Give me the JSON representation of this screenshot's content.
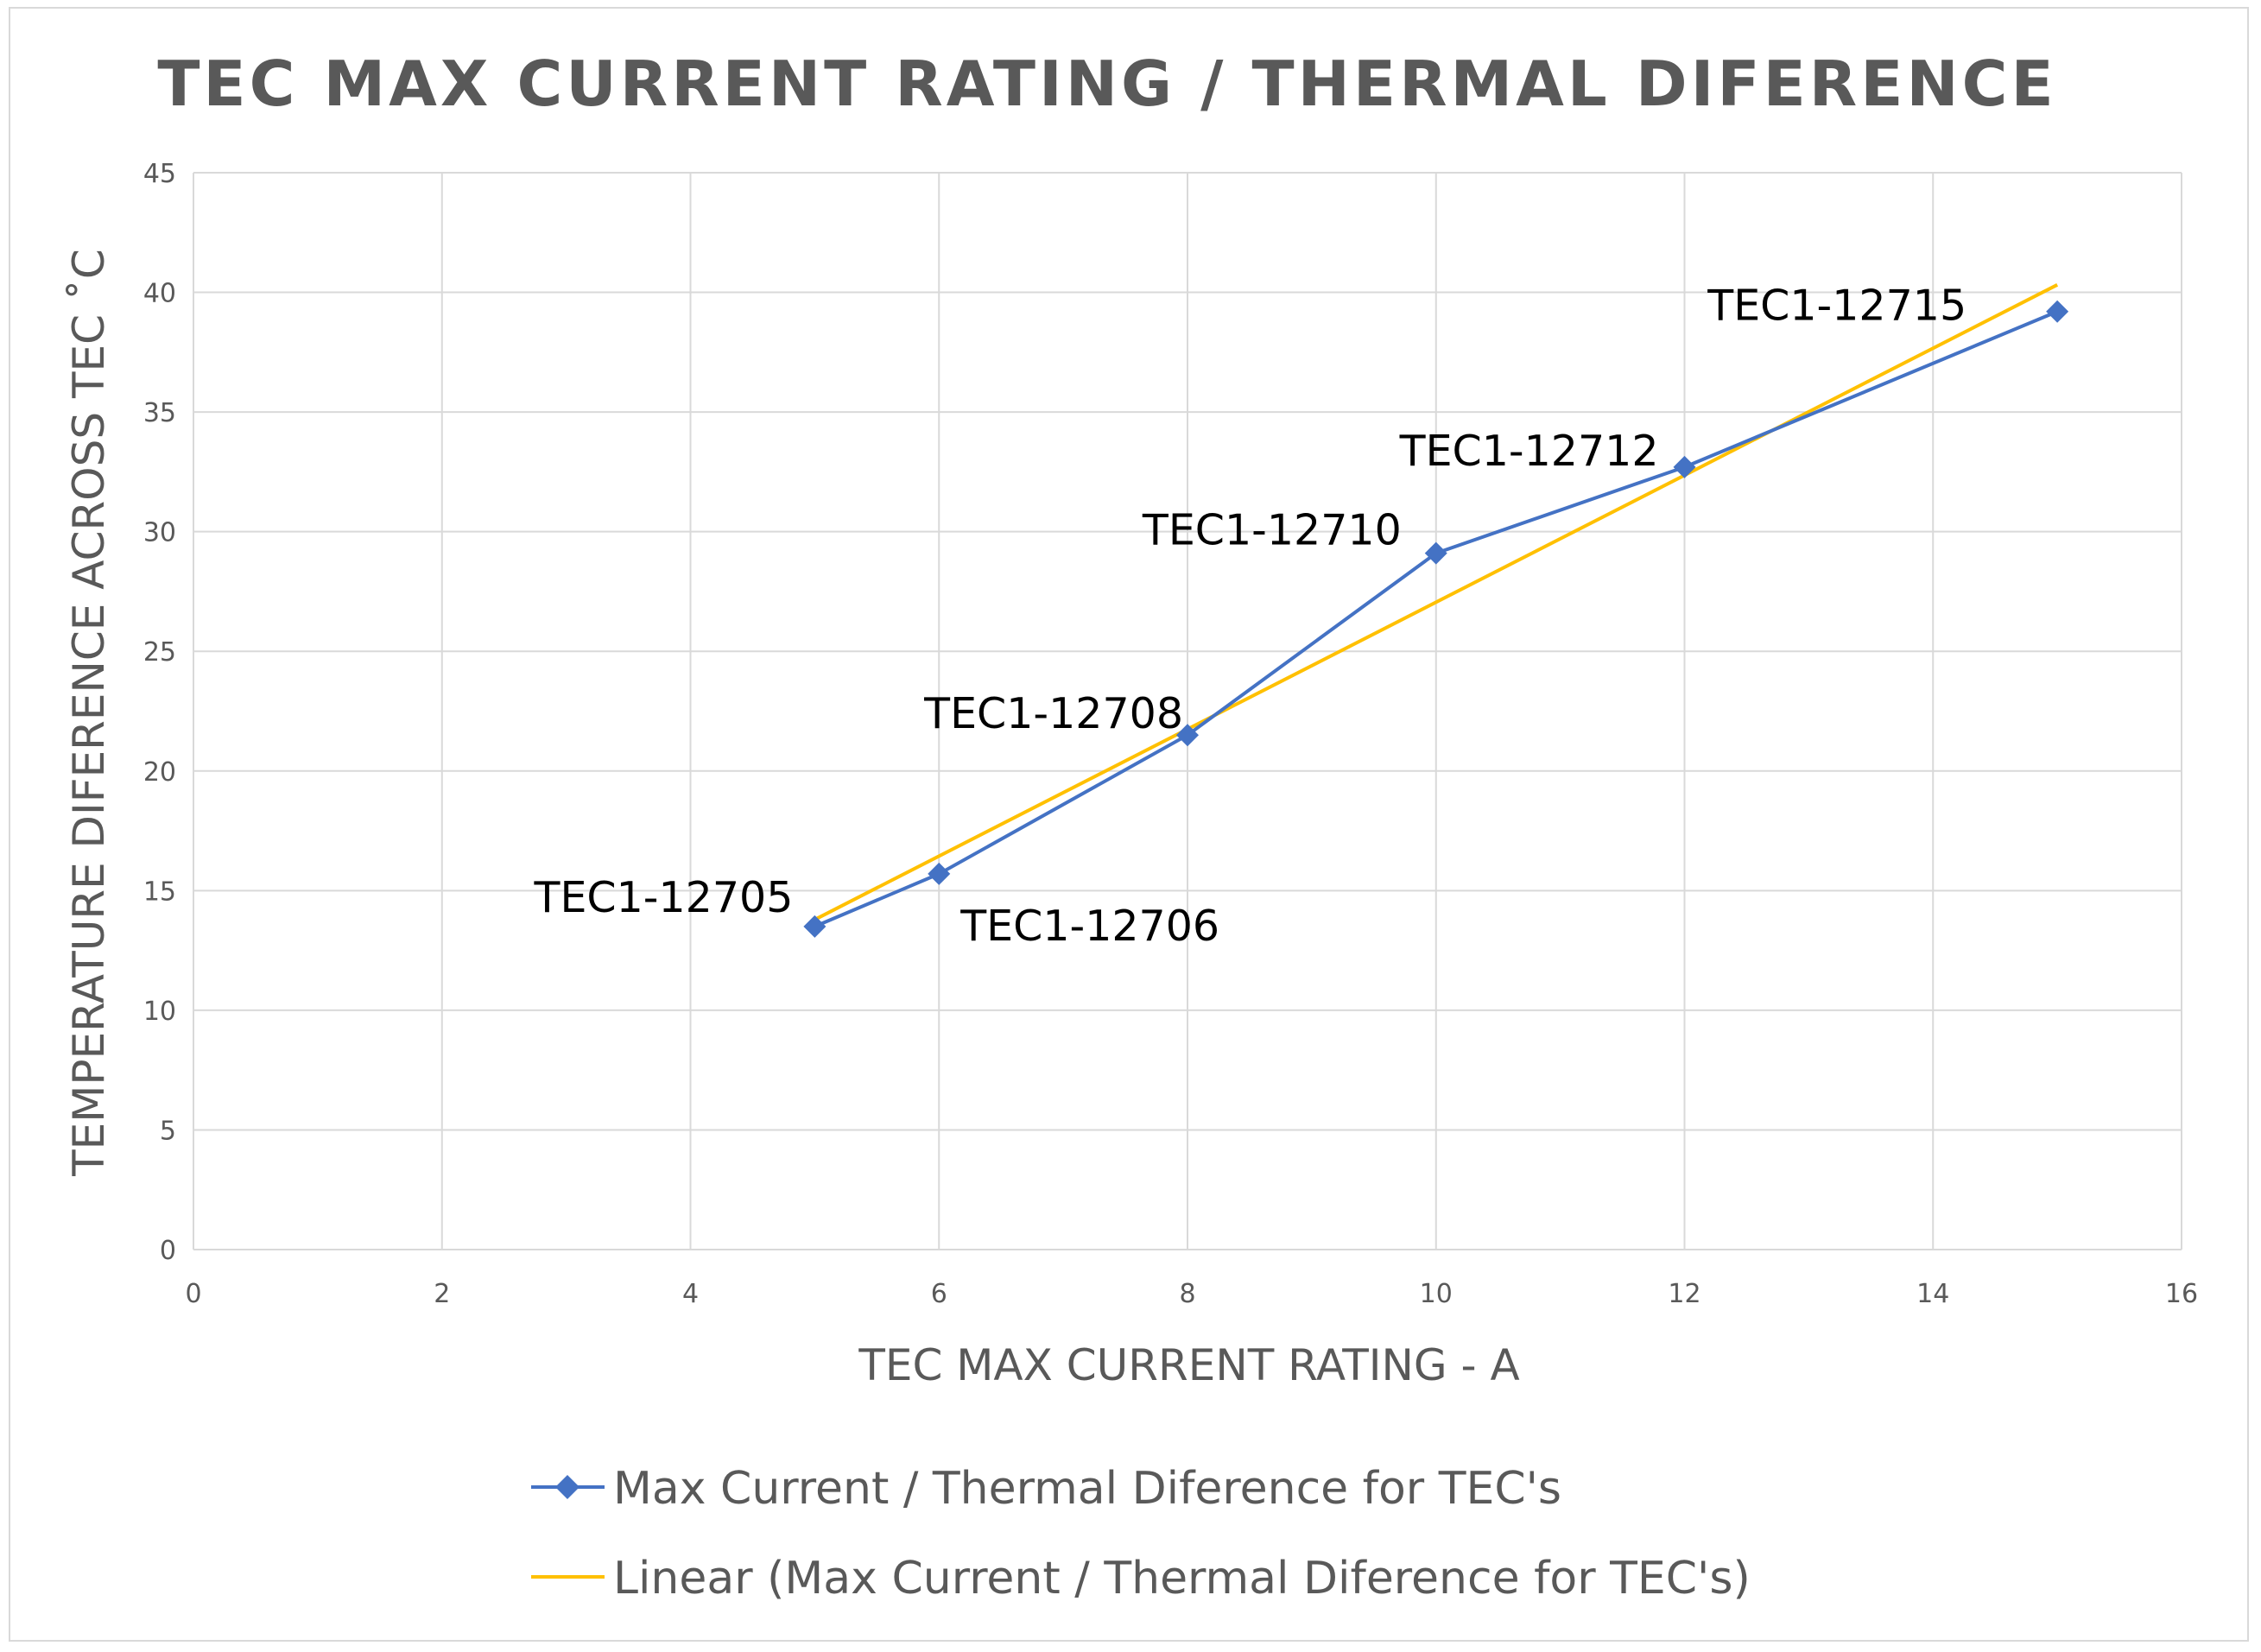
{
  "chart_data": {
    "type": "scatter",
    "title": "TEC MAX CURRENT RATING / THERMAL DIFERENCE",
    "xlabel": "TEC MAX CURRENT RATING - A",
    "ylabel": "TEMPERATURE DIFERENCE ACROSS TEC ˚C",
    "xlim": [
      0,
      16
    ],
    "ylim": [
      0,
      45
    ],
    "x_ticks": [
      0,
      2,
      4,
      6,
      8,
      10,
      12,
      14,
      16
    ],
    "y_ticks": [
      0,
      5,
      10,
      15,
      20,
      25,
      30,
      35,
      40,
      45
    ],
    "grid": true,
    "legend_position": "bottom",
    "series": [
      {
        "name": "Max Current / Thermal Diference for TEC's",
        "color": "#4472c4",
        "marker": "diamond",
        "points": [
          {
            "x": 5,
            "y": 13.5,
            "label": "TEC1-12705"
          },
          {
            "x": 6,
            "y": 15.7,
            "label": "TEC1-12706"
          },
          {
            "x": 8,
            "y": 21.5,
            "label": "TEC1-12708"
          },
          {
            "x": 10,
            "y": 29.1,
            "label": "TEC1-12710"
          },
          {
            "x": 12,
            "y": 32.7,
            "label": "TEC1-12712"
          },
          {
            "x": 15,
            "y": 39.2,
            "label": "TEC1-12715"
          }
        ]
      }
    ],
    "trendline": {
      "name": "Linear (Max Current / Thermal Diference for TEC's)",
      "type": "linear",
      "color": "#ffc000",
      "x_range": [
        5,
        15
      ]
    }
  }
}
